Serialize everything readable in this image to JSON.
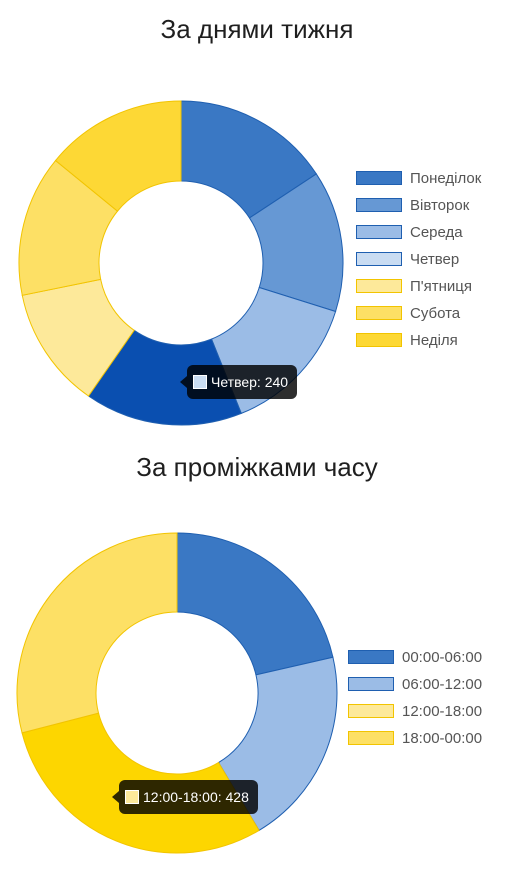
{
  "chart_data": [
    {
      "type": "pie",
      "variant": "doughnut",
      "title": "За днями тижня",
      "categories": [
        "Понеділок",
        "Вівторок",
        "Середа",
        "Четвер",
        "П'ятниця",
        "Субота",
        "Неділя"
      ],
      "values": [
        240,
        215,
        215,
        240,
        185,
        215,
        215
      ],
      "colors": [
        "#3a78c4",
        "#6698d4",
        "#9bbce6",
        "#c9dcf2",
        "#fde99a",
        "#fde065",
        "#fdd835"
      ],
      "border_colors": [
        "#1f5fb0",
        "#1f5fb0",
        "#1f5fb0",
        "#1f5fb0",
        "#f2c400",
        "#f2c400",
        "#f2c400"
      ],
      "legend_position": "right",
      "tooltip": {
        "label": "Четвер: 240",
        "category_index": 3,
        "highlight_color": "#0a4fb0"
      }
    },
    {
      "type": "pie",
      "variant": "doughnut",
      "title": "За проміжками часу",
      "categories": [
        "00:00-06:00",
        "06:00-12:00",
        "12:00-18:00",
        "18:00-00:00"
      ],
      "values": [
        310,
        290,
        428,
        420
      ],
      "colors": [
        "#3a78c4",
        "#9bbce6",
        "#fde99a",
        "#fde065"
      ],
      "border_colors": [
        "#1f5fb0",
        "#1f5fb0",
        "#f2c400",
        "#f2c400"
      ],
      "legend_position": "right",
      "tooltip": {
        "label": "12:00-18:00: 428",
        "category_index": 2,
        "highlight_color": "#fdd600"
      }
    }
  ]
}
